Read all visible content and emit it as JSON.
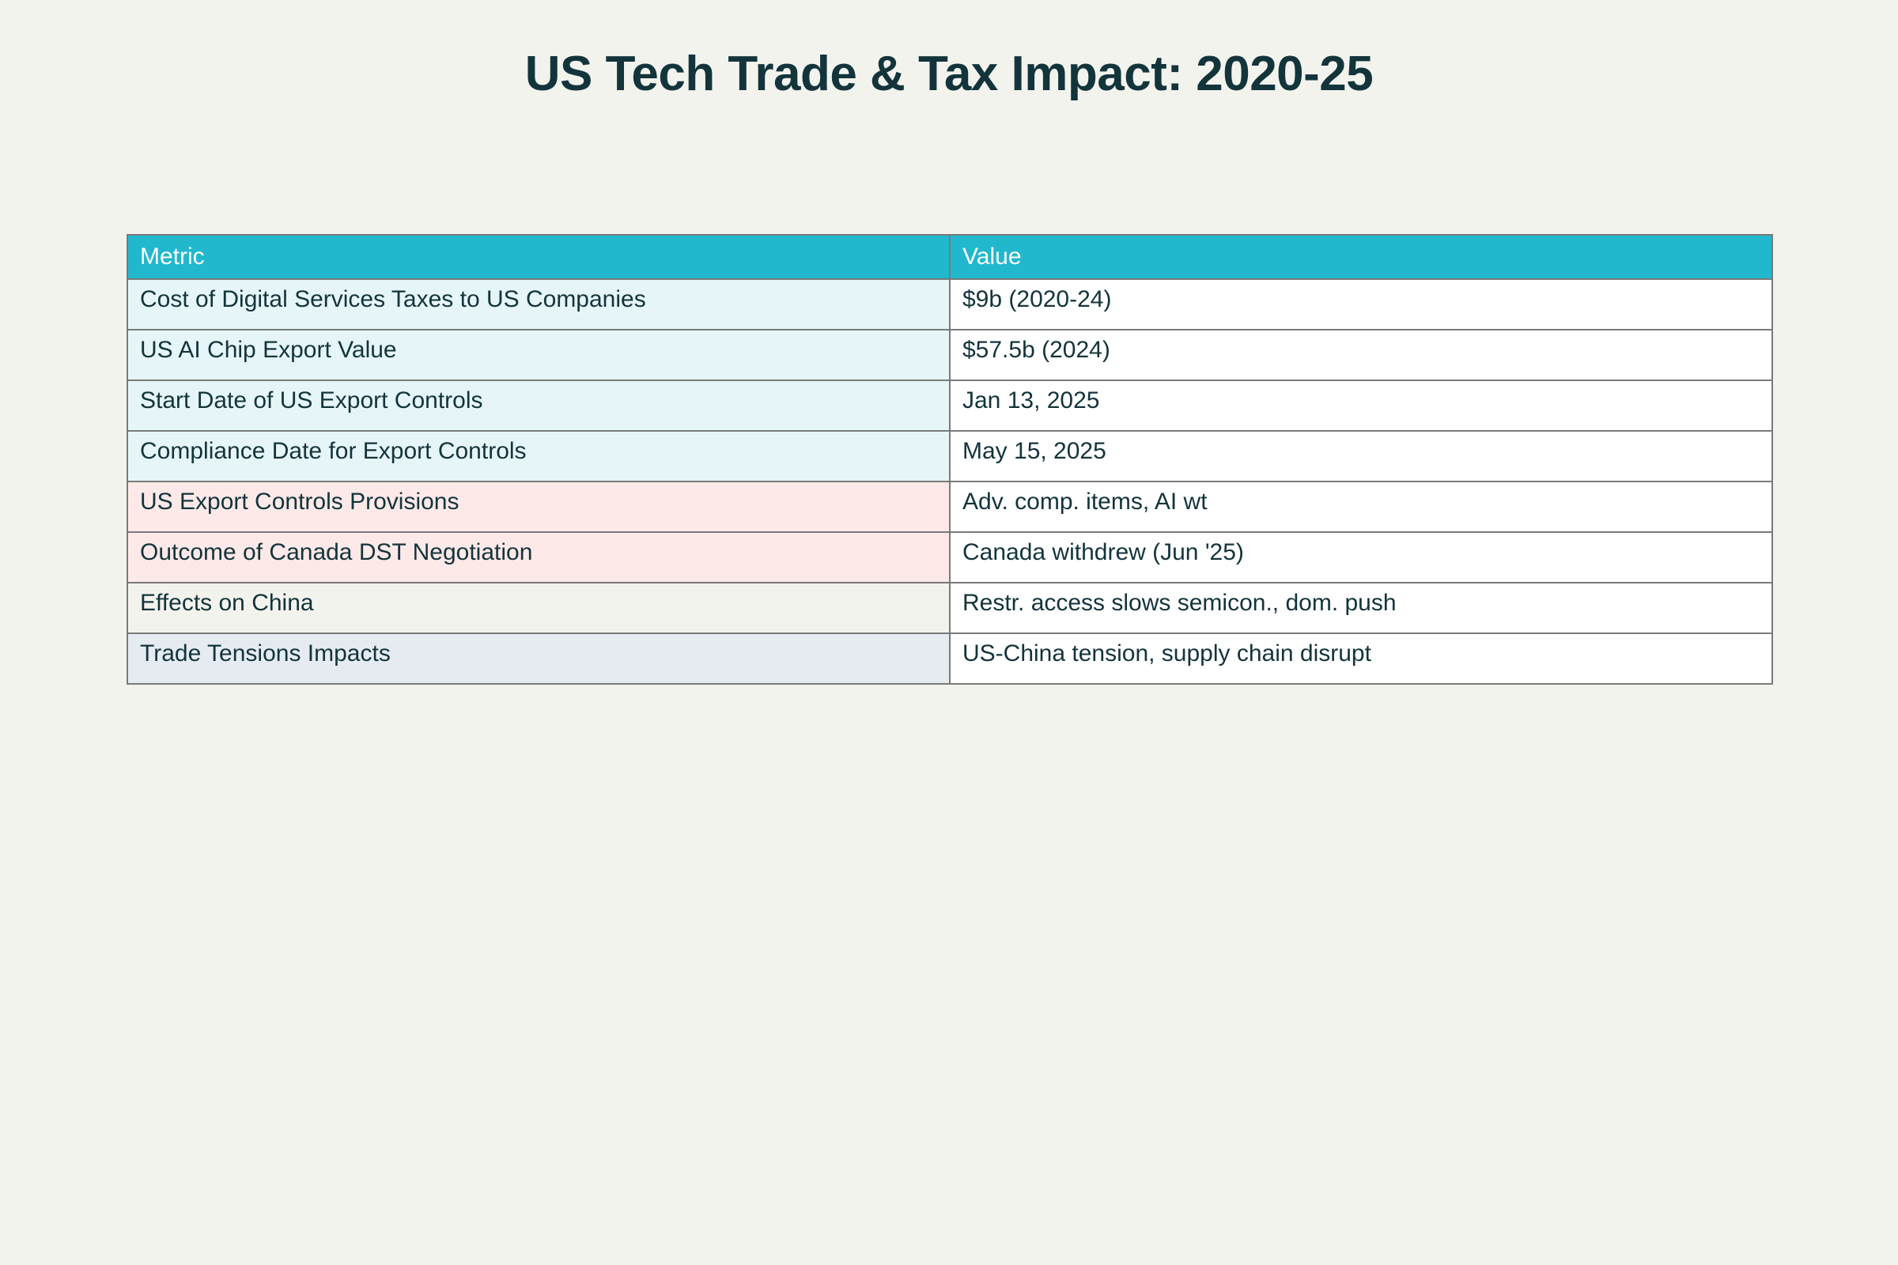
{
  "title": "US Tech Trade & Tax Impact: 2020-25",
  "colors": {
    "background": "#f3f3ee",
    "header_fill": "#21b8cd",
    "header_text": "#ffffff",
    "text": "#13343b",
    "border": "#7a7a7a",
    "value_cell_fill": "#ffffff"
  },
  "chart_data": {
    "type": "table",
    "columns": [
      "Metric",
      "Value"
    ],
    "rows": [
      {
        "metric": "Cost of Digital Services Taxes to US Companies",
        "value": "$9b (2020-24)",
        "fill": "#e6f6f8"
      },
      {
        "metric": "US AI Chip Export Value",
        "value": "$57.5b (2024)",
        "fill": "#e6f6f8"
      },
      {
        "metric": "Start Date of US Export Controls",
        "value": "Jan 13, 2025",
        "fill": "#e6f6f8"
      },
      {
        "metric": "Compliance Date for Export Controls",
        "value": "May 15, 2025",
        "fill": "#e6f6f8"
      },
      {
        "metric": "US Export Controls Provisions",
        "value": "Adv. comp. items, AI wt",
        "fill": "#fde9e8"
      },
      {
        "metric": "Outcome of Canada DST Negotiation",
        "value": "Canada withdrew (Jun '25)",
        "fill": "#fde9e8"
      },
      {
        "metric": "Effects on China",
        "value": "Restr. access slows semicon., dom. push",
        "fill": "#f3f3ee"
      },
      {
        "metric": "Trade Tensions Impacts",
        "value": "US-China tension, supply chain disrupt",
        "fill": "#e6ebf2"
      }
    ]
  }
}
